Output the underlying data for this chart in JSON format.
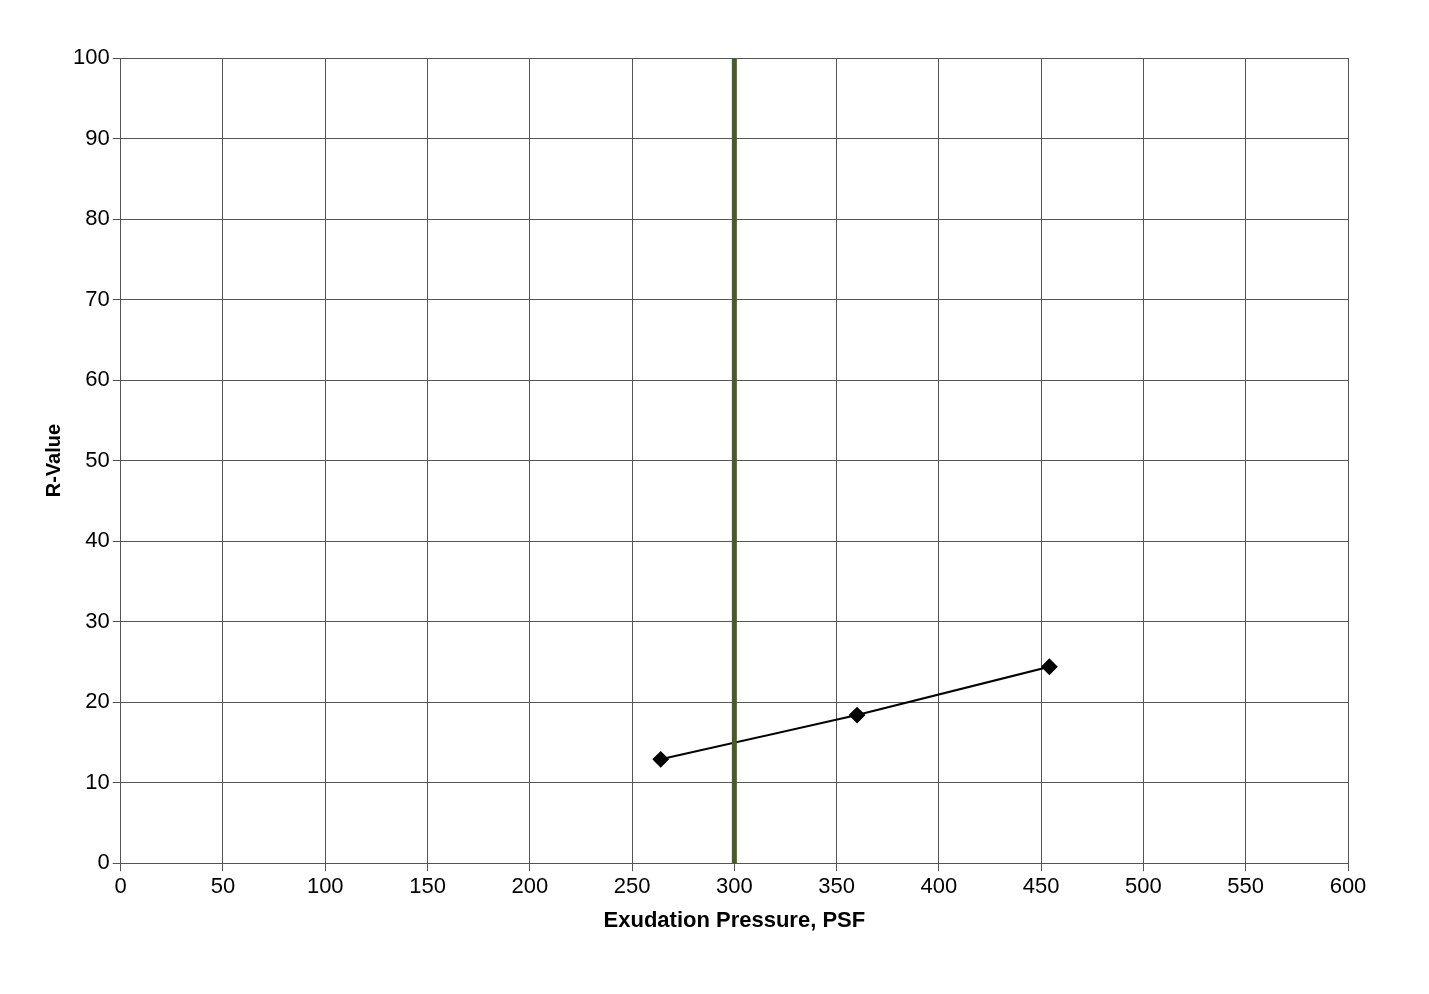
{
  "chart_data": {
    "type": "line",
    "xlabel": "Exudation Pressure, PSF",
    "ylabel": "R-Value",
    "series": [
      {
        "color": "#000000",
        "x": [
          264,
          360,
          454
        ],
        "values": [
          12.9,
          18.4,
          24.4
        ]
      }
    ],
    "xlim": [
      0,
      600
    ],
    "xticks": [
      0,
      50,
      100,
      150,
      200,
      250,
      300,
      350,
      400,
      450,
      500,
      550,
      600
    ],
    "ylim": [
      0,
      100
    ],
    "yticks": [
      0,
      10,
      20,
      30,
      40,
      50,
      60,
      70,
      80,
      90,
      100
    ],
    "ref_lines": [
      {
        "axis": "x",
        "value": 300,
        "color": "#4b5a2a",
        "line_style": "solid"
      }
    ],
    "grid": true,
    "marker": "diamond",
    "line_style": "solid",
    "legend": false
  }
}
